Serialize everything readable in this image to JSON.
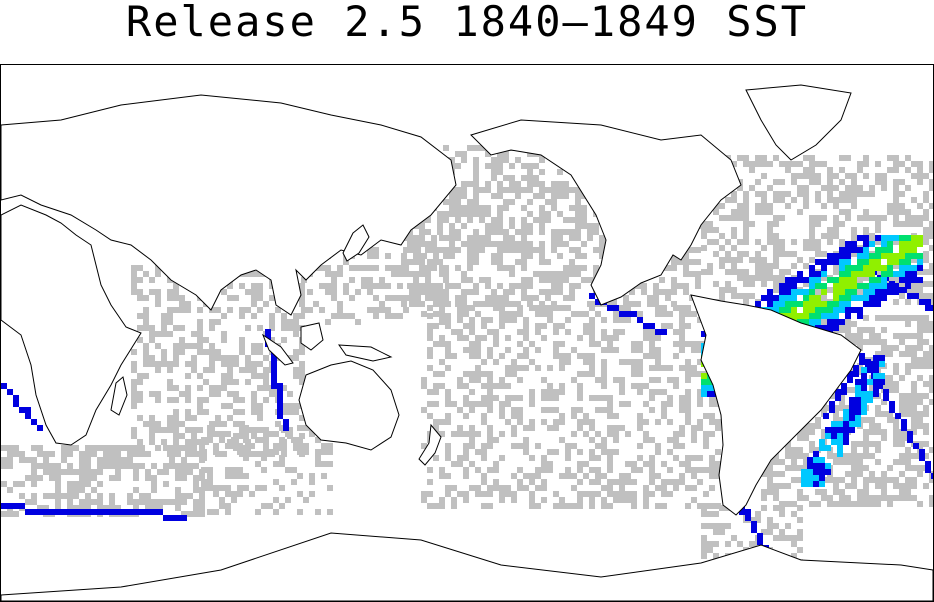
{
  "title": "Release 2.5 1840–1849 SST",
  "map": {
    "projection": "equirectangular, Pacific-centred",
    "gridded_field": "SST observation coverage per 2° box",
    "legend": "not shown",
    "colors": {
      "sparse_coverage": "#c0c0c0",
      "low_density": "#0000e0",
      "medium_density": "#00c8ff",
      "high_density": "#00e070",
      "very_high_density": "#90f000",
      "coastline": "#000000",
      "land": "#ffffff"
    },
    "dense_regions": [
      "North Atlantic shipping lanes",
      "South Atlantic route to Cape Horn",
      "Cape of Good Hope / southern Indian Ocean route",
      "Malacca Strait / Indonesian seas"
    ]
  }
}
